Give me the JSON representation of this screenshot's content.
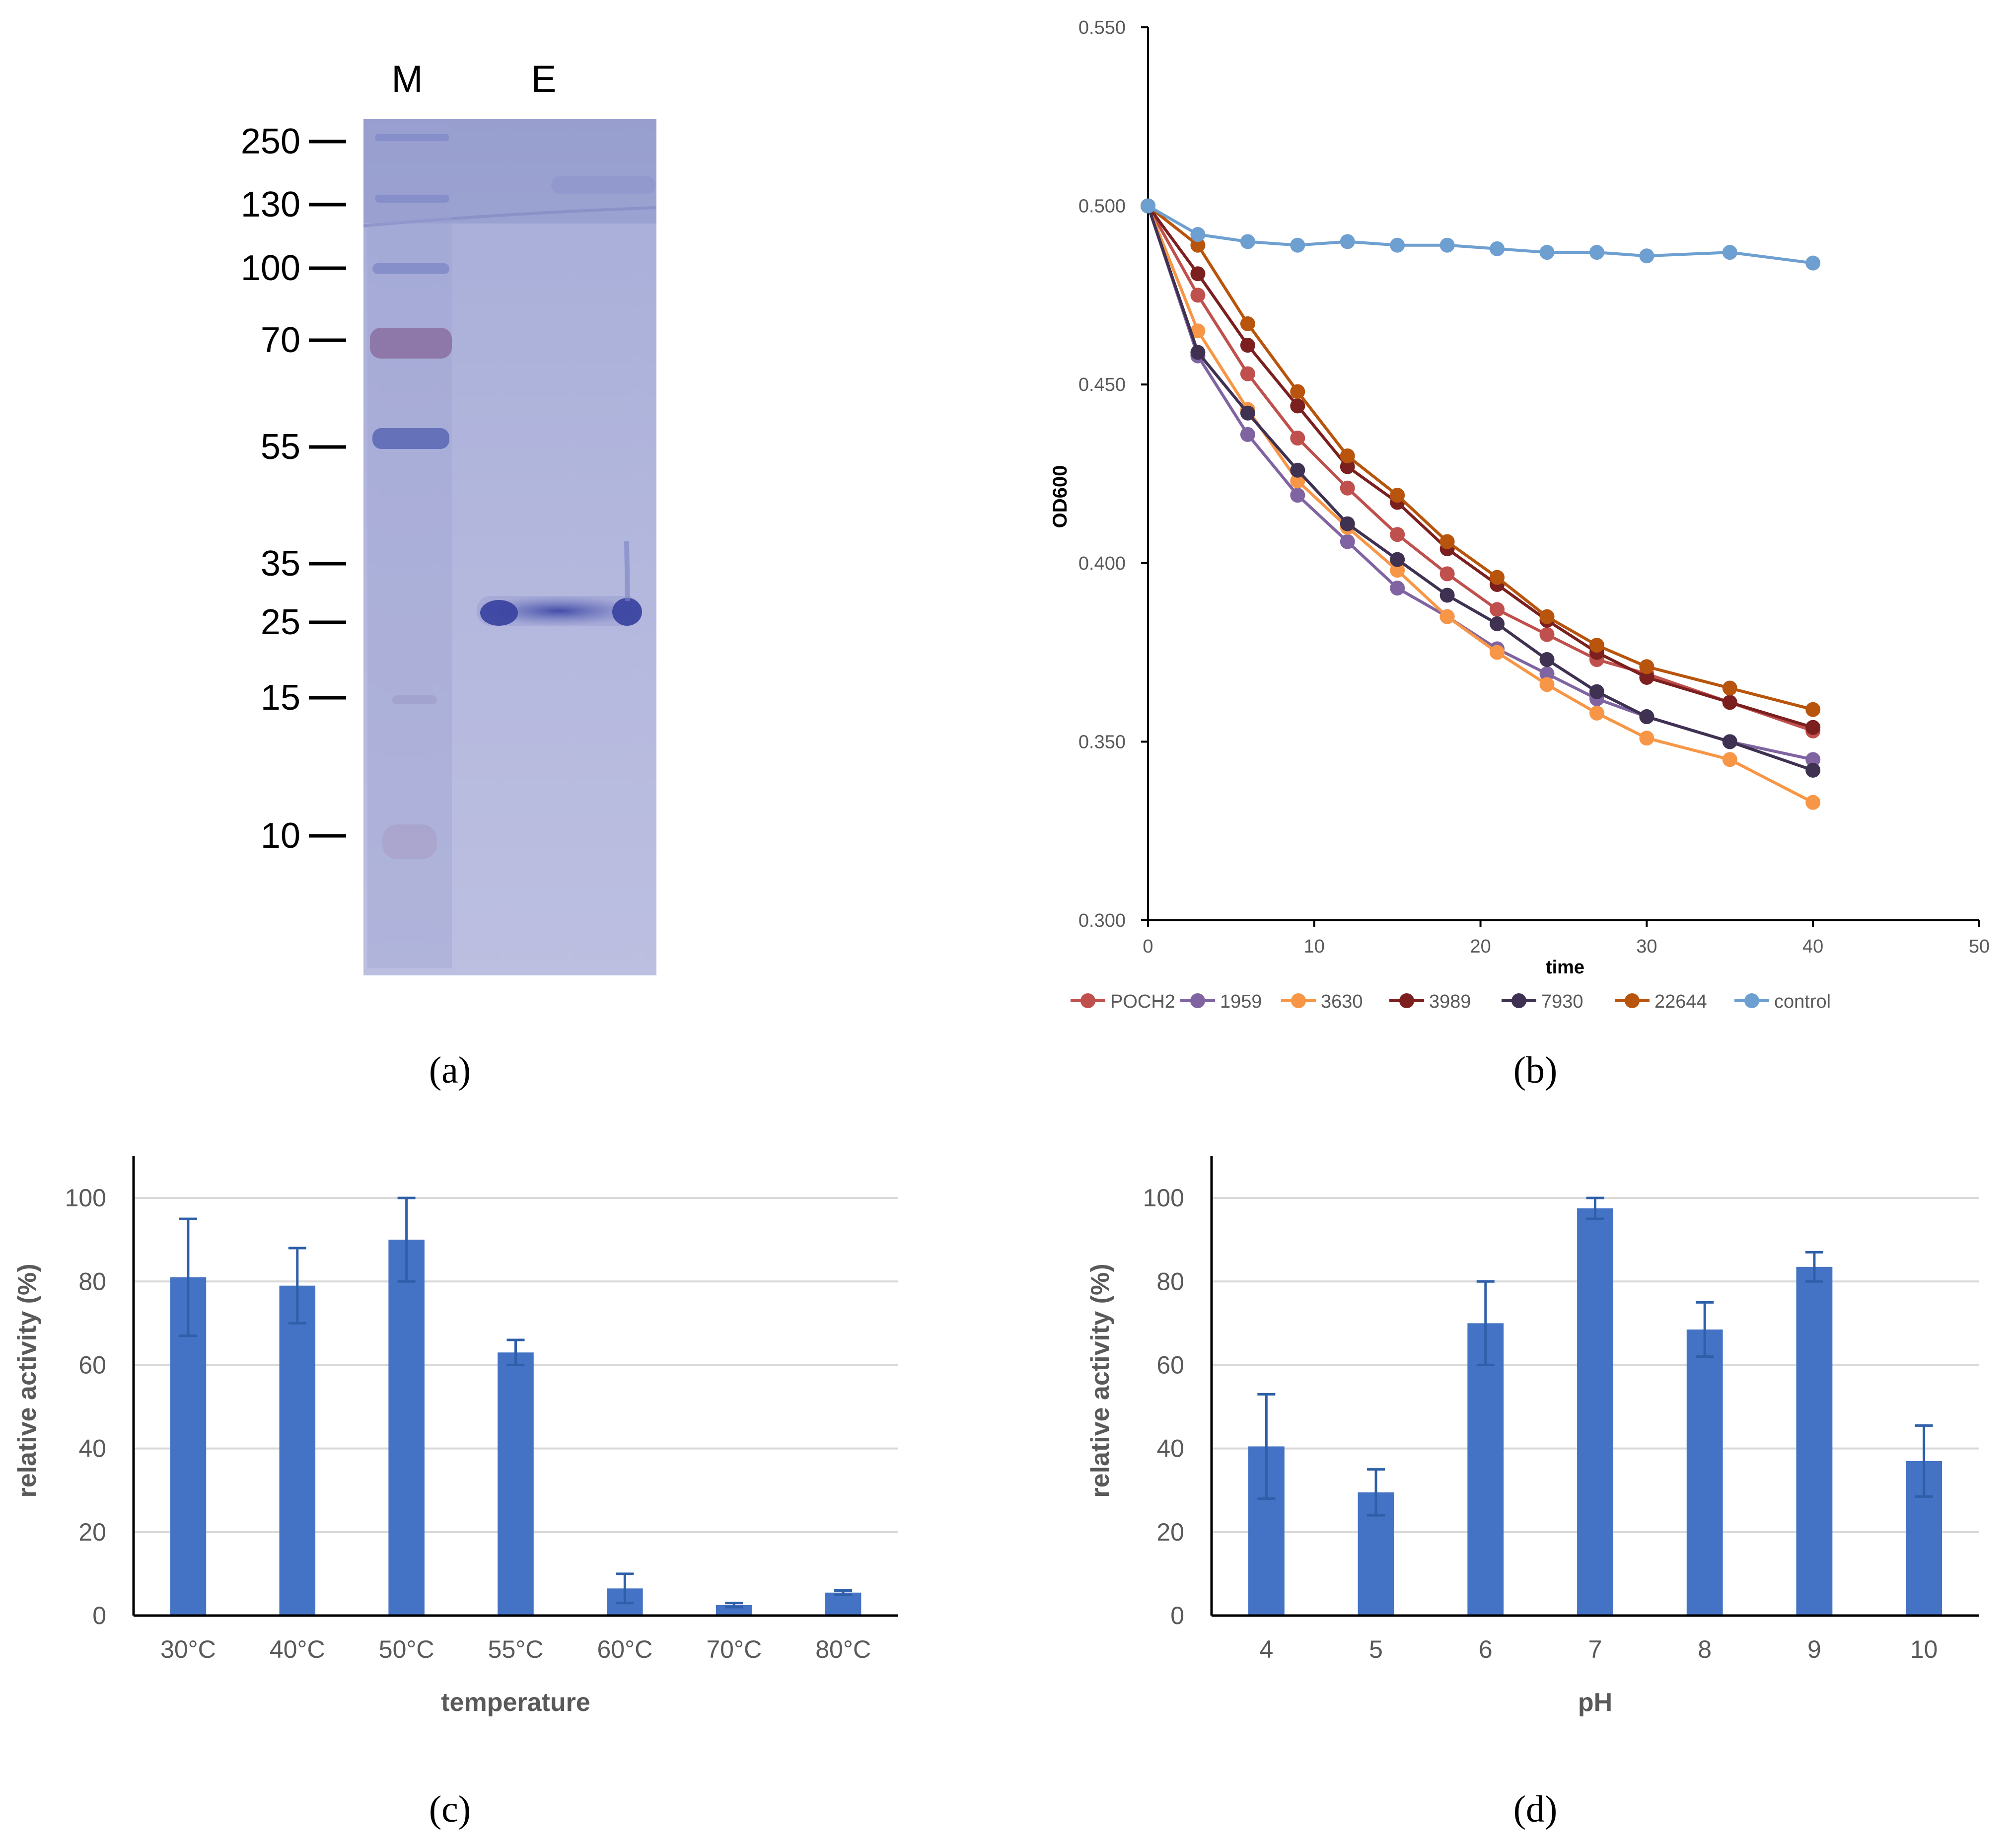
{
  "panel_labels": [
    "(a)",
    "(b)",
    "(c)",
    "(d)"
  ],
  "colors": {
    "bar": "#4472C4",
    "error": "#2E5FA8",
    "grid": "#d9d9d9",
    "axis": "#000000",
    "tick_text": "#595959"
  },
  "chart_data": [
    {
      "panel": "a",
      "type": "gel",
      "lanes": [
        "M",
        "E"
      ],
      "markers": [
        "250",
        "130",
        "100",
        "70",
        "55",
        "35",
        "25",
        "15",
        "10"
      ],
      "band_lane": "E",
      "band_marker": "25"
    },
    {
      "panel": "b",
      "type": "line",
      "title": "",
      "xlabel": "time",
      "ylabel": "OD600",
      "xlim": [
        0,
        50
      ],
      "ylim": [
        0.3,
        0.55
      ],
      "x_ticks": [
        "0",
        "10",
        "20",
        "30",
        "40",
        "50"
      ],
      "y_ticks": [
        "0.300",
        "0.350",
        "0.400",
        "0.450",
        "0.500",
        "0.550"
      ],
      "x": [
        0,
        3,
        6,
        9,
        12,
        15,
        18,
        21,
        24,
        27,
        30,
        35,
        40
      ],
      "series": [
        {
          "name": "POCH2",
          "color": "#C0504D",
          "values": [
            0.5,
            0.475,
            0.453,
            0.435,
            0.421,
            0.408,
            0.397,
            0.387,
            0.38,
            0.373,
            0.369,
            0.361,
            0.353
          ]
        },
        {
          "name": "1959",
          "color": "#8064A2",
          "values": [
            0.5,
            0.458,
            0.436,
            0.419,
            0.406,
            0.393,
            0.385,
            0.376,
            0.369,
            0.362,
            0.357,
            0.35,
            0.345
          ]
        },
        {
          "name": "3630",
          "color": "#F79646",
          "values": [
            0.5,
            0.465,
            0.443,
            0.423,
            0.41,
            0.398,
            0.385,
            0.375,
            0.366,
            0.358,
            0.351,
            0.345,
            0.333
          ]
        },
        {
          "name": "3989",
          "color": "#7B1F1F",
          "values": [
            0.5,
            0.481,
            0.461,
            0.444,
            0.427,
            0.417,
            0.404,
            0.394,
            0.384,
            0.375,
            0.368,
            0.361,
            0.354
          ]
        },
        {
          "name": "7930",
          "color": "#3F3151",
          "values": [
            0.5,
            0.459,
            0.442,
            0.426,
            0.411,
            0.401,
            0.391,
            0.383,
            0.373,
            0.364,
            0.357,
            0.35,
            0.342
          ]
        },
        {
          "name": "22644",
          "color": "#B8540B",
          "values": [
            0.5,
            0.489,
            0.467,
            0.448,
            0.43,
            0.419,
            0.406,
            0.396,
            0.385,
            0.377,
            0.371,
            0.365,
            0.359
          ]
        },
        {
          "name": "control",
          "color": "#6E9FD1",
          "values": [
            0.5,
            0.492,
            0.49,
            0.489,
            0.49,
            0.489,
            0.489,
            0.488,
            0.487,
            0.487,
            0.486,
            0.487,
            0.484
          ]
        }
      ]
    },
    {
      "panel": "c",
      "type": "bar",
      "title": "",
      "xlabel": "temperature",
      "ylabel": "relative activity (%)",
      "ylim": [
        0,
        110
      ],
      "y_ticks": [
        "0",
        "20",
        "40",
        "60",
        "80",
        "100"
      ],
      "categories": [
        "30°C",
        "40°C",
        "50°C",
        "55°C",
        "60°C",
        "70°C",
        "80°C"
      ],
      "values": [
        81,
        79,
        90,
        63,
        6.5,
        2.5,
        5.5
      ],
      "errors": [
        14,
        9,
        10,
        3,
        3.5,
        0.5,
        0.5
      ],
      "grid": true
    },
    {
      "panel": "d",
      "type": "bar",
      "title": "",
      "xlabel": "pH",
      "ylabel": "relative activity (%)",
      "ylim": [
        0,
        110
      ],
      "y_ticks": [
        "0",
        "20",
        "40",
        "60",
        "80",
        "100"
      ],
      "categories": [
        "4",
        "5",
        "6",
        "7",
        "8",
        "9",
        "10"
      ],
      "values": [
        40.5,
        29.5,
        70,
        97.5,
        68.5,
        83.5,
        37
      ],
      "errors": [
        12.5,
        5.5,
        10,
        2.5,
        6.5,
        3.5,
        8.5
      ],
      "grid": true
    }
  ]
}
